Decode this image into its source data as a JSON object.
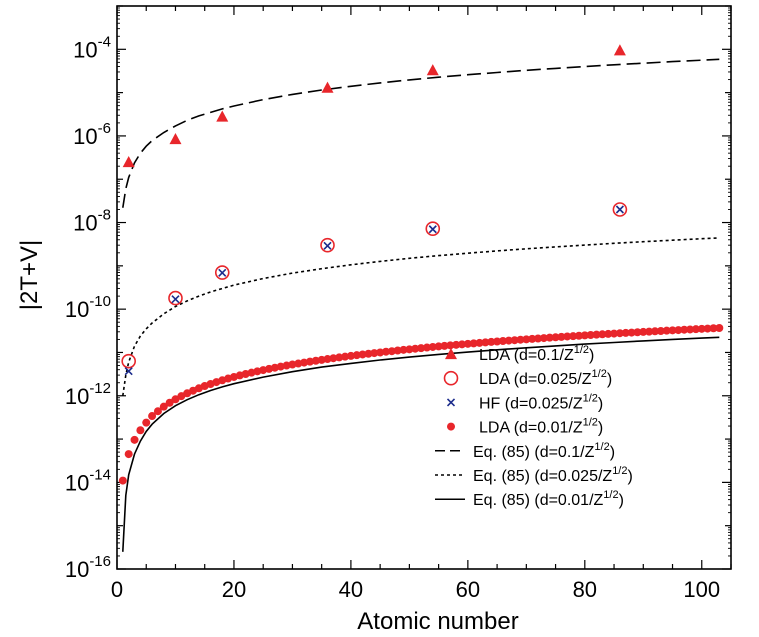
{
  "chart_data": {
    "type": "scatter",
    "xlabel": "Atomic number",
    "ylabel": "|2T+V|",
    "xlim": [
      0,
      105
    ],
    "ylim_exp": [
      -16,
      -3
    ],
    "log_y": true,
    "x_ticks": [
      "0",
      "20",
      "40",
      "60",
      "80",
      "100"
    ],
    "x_tick_values": [
      0,
      20,
      40,
      60,
      80,
      100
    ],
    "y_ticks": [
      {
        "base": "10",
        "exp": "-16",
        "value": 1e-16
      },
      {
        "base": "10",
        "exp": "-14",
        "value": 1e-14
      },
      {
        "base": "10",
        "exp": "-12",
        "value": 1e-12
      },
      {
        "base": "10",
        "exp": "-10",
        "value": 1e-10
      },
      {
        "base": "10",
        "exp": "-8",
        "value": 1e-08
      },
      {
        "base": "10",
        "exp": "-6",
        "value": 1e-06
      },
      {
        "base": "10",
        "exp": "-4",
        "value": 0.0001
      }
    ],
    "legend_position": "bottom-right",
    "legend": [
      {
        "marker": "triangle",
        "text": "LDA (d=0.1/Z",
        "sup": "1/2",
        "tail": ")"
      },
      {
        "marker": "open-circle",
        "text": "LDA (d=0.025/Z",
        "sup": "1/2",
        "tail": ")"
      },
      {
        "marker": "x",
        "text": "HF (d=0.025/Z",
        "sup": "1/2",
        "tail": ")"
      },
      {
        "marker": "filled-circle",
        "text": "LDA (d=0.01/Z",
        "sup": "1/2",
        "tail": ")"
      },
      {
        "marker": "dashed",
        "text": "Eq. (85) (d=0.1/Z",
        "sup": "1/2",
        "tail": ")"
      },
      {
        "marker": "dotted",
        "text": "Eq. (85) (d=0.025/Z",
        "sup": "1/2",
        "tail": ")"
      },
      {
        "marker": "solid",
        "text": "Eq. (85) (d=0.01/Z",
        "sup": "1/2",
        "tail": ")"
      }
    ],
    "series": [
      {
        "name": "LDA (d=0.1/Z^1/2)",
        "marker": "triangle",
        "color": "#e8262b",
        "x": [
          2,
          10,
          18,
          36,
          54,
          86
        ],
        "y": [
          2.5e-07,
          8.5e-07,
          2.8e-06,
          1.3e-05,
          3.3e-05,
          9.5e-05
        ]
      },
      {
        "name": "LDA (d=0.025/Z^1/2)",
        "marker": "open-circle",
        "color": "#e8262b",
        "x": [
          2,
          10,
          18,
          36,
          54,
          86
        ],
        "y": [
          6.3e-12,
          1.8e-10,
          7e-10,
          3e-09,
          7.2e-09,
          2e-08
        ]
      },
      {
        "name": "HF (d=0.025/Z^1/2)",
        "marker": "x",
        "color": "#1c2c8c",
        "x": [
          2,
          10,
          18,
          36,
          54,
          86
        ],
        "y": [
          3.7e-12,
          1.7e-10,
          6.9e-10,
          2.9e-09,
          7e-09,
          2e-08
        ]
      },
      {
        "name": "LDA (d=0.01/Z^1/2)",
        "marker": "filled-circle",
        "color": "#e8262b",
        "x": [
          1,
          2,
          3,
          4,
          5,
          6,
          7,
          8,
          9,
          10,
          11,
          12,
          13,
          14,
          15,
          16,
          17,
          18,
          19,
          20,
          21,
          22,
          23,
          24,
          25,
          26,
          27,
          28,
          29,
          30,
          31,
          32,
          33,
          34,
          35,
          36,
          37,
          38,
          39,
          40,
          41,
          42,
          43,
          44,
          45,
          46,
          47,
          48,
          49,
          50,
          51,
          52,
          53,
          54,
          55,
          56,
          57,
          58,
          59,
          60,
          61,
          62,
          63,
          64,
          65,
          66,
          67,
          68,
          69,
          70,
          71,
          72,
          73,
          74,
          75,
          76,
          77,
          78,
          79,
          80,
          81,
          82,
          83,
          84,
          85,
          86,
          87,
          88,
          89,
          90,
          91,
          92,
          93,
          94,
          95,
          96,
          97,
          98,
          99,
          100,
          101,
          102,
          103
        ],
        "y": [
          1.1e-14,
          4.5e-14,
          9.6e-14,
          1.6e-13,
          2.4e-13,
          3.4e-13,
          4.4e-13,
          5.6e-13,
          6.9e-13,
          8.3e-13,
          9.8e-13,
          1.14e-12,
          1.31e-12,
          1.49e-12,
          1.68e-12,
          1.87e-12,
          2.07e-12,
          2.28e-12,
          2.5e-12,
          2.72e-12,
          2.95e-12,
          3.18e-12,
          3.42e-12,
          3.67e-12,
          3.92e-12,
          4.18e-12,
          4.45e-12,
          4.72e-12,
          4.99e-12,
          5.27e-12,
          5.55e-12,
          5.84e-12,
          6.14e-12,
          6.44e-12,
          6.74e-12,
          7.05e-12,
          7.36e-12,
          7.68e-12,
          8e-12,
          8.33e-12,
          8.66e-12,
          8.99e-12,
          9.33e-12,
          9.67e-12,
          1e-11,
          1.04e-11,
          1.07e-11,
          1.11e-11,
          1.15e-11,
          1.18e-11,
          1.22e-11,
          1.26e-11,
          1.3e-11,
          1.34e-11,
          1.38e-11,
          1.42e-11,
          1.46e-11,
          1.5e-11,
          1.54e-11,
          1.58e-11,
          1.62e-11,
          1.66e-11,
          1.71e-11,
          1.75e-11,
          1.79e-11,
          1.84e-11,
          1.88e-11,
          1.92e-11,
          1.97e-11,
          2.01e-11,
          2.06e-11,
          2.1e-11,
          2.15e-11,
          2.2e-11,
          2.24e-11,
          2.29e-11,
          2.34e-11,
          2.38e-11,
          2.43e-11,
          2.48e-11,
          2.53e-11,
          2.58e-11,
          2.63e-11,
          2.68e-11,
          2.73e-11,
          2.78e-11,
          2.83e-11,
          2.88e-11,
          2.93e-11,
          2.98e-11,
          3.03e-11,
          3.08e-11,
          3.13e-11,
          3.19e-11,
          3.24e-11,
          3.29e-11,
          3.35e-11,
          3.4e-11,
          3.45e-11,
          3.51e-11,
          3.56e-11,
          3.62e-11,
          3.67e-11
        ]
      },
      {
        "name": "Eq. (85) (d=0.1/Z^1/2)",
        "marker": "dashed",
        "color": "#000000",
        "x": [
          1,
          1.5,
          2,
          3,
          4,
          5,
          6,
          8,
          10,
          12,
          14,
          16,
          18,
          20,
          25,
          30,
          35,
          40,
          45,
          50,
          55,
          60,
          65,
          70,
          75,
          80,
          85,
          90,
          95,
          100,
          103
        ],
        "y": [
          2.2e-08,
          6e-08,
          1.1e-07,
          2.4e-07,
          4e-07,
          5.8e-07,
          7.8e-07,
          1.2e-06,
          1.7e-06,
          2.3e-06,
          2.9e-06,
          3.5e-06,
          4.2e-06,
          4.9e-06,
          6.9e-06,
          9.1e-06,
          1.15e-05,
          1.4e-05,
          1.68e-05,
          1.97e-05,
          2.27e-05,
          2.59e-05,
          2.92e-05,
          3.27e-05,
          3.63e-05,
          4e-05,
          4.39e-05,
          4.78e-05,
          5.19e-05,
          5.61e-05,
          5.87e-05
        ]
      },
      {
        "name": "Eq. (85) (d=0.025/Z^1/2)",
        "marker": "dotted",
        "color": "#000000",
        "x": [
          1,
          1.5,
          2,
          3,
          4,
          5,
          6,
          8,
          10,
          12,
          14,
          16,
          18,
          20,
          25,
          30,
          35,
          40,
          45,
          50,
          55,
          60,
          65,
          70,
          75,
          80,
          85,
          90,
          95,
          100,
          103
        ],
        "y": [
          1e-12,
          3e-12,
          6e-12,
          1.4e-11,
          2.4e-11,
          3.5e-11,
          4.8e-11,
          7.8e-11,
          1.15e-10,
          1.55e-10,
          2e-10,
          2.5e-10,
          3e-10,
          3.6e-10,
          5.1e-10,
          6.8e-10,
          8.6e-10,
          1.06e-09,
          1.27e-09,
          1.49e-09,
          1.72e-09,
          1.96e-09,
          2.21e-09,
          2.47e-09,
          2.74e-09,
          3.02e-09,
          3.31e-09,
          3.61e-09,
          3.92e-09,
          4.23e-09,
          4.42e-09
        ]
      },
      {
        "name": "Eq. (85) (d=0.01/Z^1/2)",
        "marker": "solid",
        "color": "#000000",
        "x": [
          1,
          1.5,
          2,
          3,
          4,
          5,
          6,
          8,
          10,
          12,
          14,
          16,
          18,
          20,
          25,
          30,
          35,
          40,
          45,
          50,
          55,
          60,
          65,
          70,
          75,
          80,
          85,
          90,
          95,
          100,
          103
        ],
        "y": [
          2.5e-16,
          5e-15,
          1.5e-14,
          4.5e-14,
          9e-14,
          1.5e-13,
          2.2e-13,
          3.9e-13,
          5.9e-13,
          8.1e-13,
          1.06e-12,
          1.32e-12,
          1.6e-12,
          1.9e-12,
          2.7e-12,
          3.6e-12,
          4.6e-12,
          5.6e-12,
          6.7e-12,
          7.8e-12,
          9e-12,
          1.02e-11,
          1.15e-11,
          1.28e-11,
          1.42e-11,
          1.56e-11,
          1.7e-11,
          1.85e-11,
          2e-11,
          2.15e-11,
          2.24e-11
        ]
      }
    ]
  }
}
